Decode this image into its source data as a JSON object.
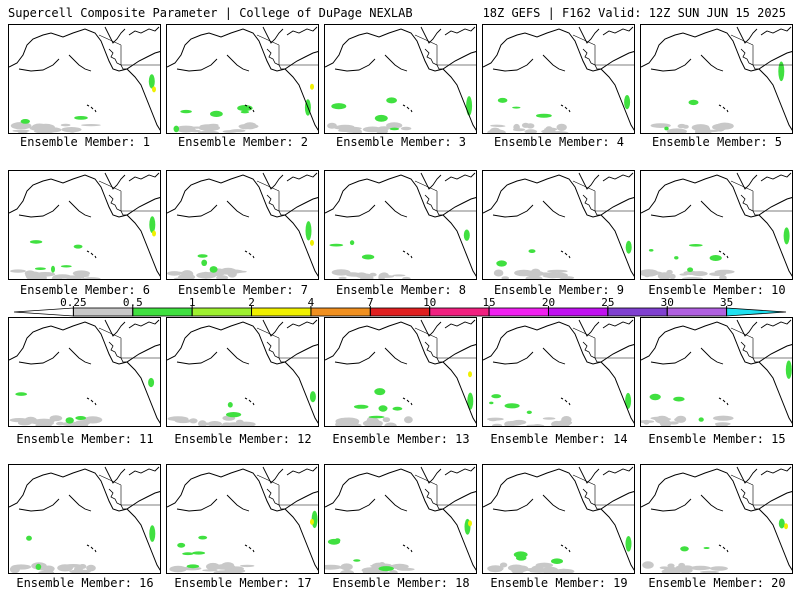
{
  "header": {
    "title_left": "Supercell Composite Parameter | College of DuPage NEXLAB",
    "title_right": "18Z GEFS | F162 Valid: 12Z SUN JUN 15 2025"
  },
  "map_region": "North Pacific / North America west coast",
  "panels": [
    {
      "label": "Ensemble Member: 1"
    },
    {
      "label": "Ensemble Member: 2"
    },
    {
      "label": "Ensemble Member: 3"
    },
    {
      "label": "Ensemble Member: 4"
    },
    {
      "label": "Ensemble Member: 5"
    },
    {
      "label": "Ensemble Member: 6"
    },
    {
      "label": "Ensemble Member: 7"
    },
    {
      "label": "Ensemble Member: 8"
    },
    {
      "label": "Ensemble Member: 9"
    },
    {
      "label": "Ensemble Member: 10"
    },
    {
      "label": "Ensemble Member: 11"
    },
    {
      "label": "Ensemble Member: 12"
    },
    {
      "label": "Ensemble Member: 13"
    },
    {
      "label": "Ensemble Member: 14"
    },
    {
      "label": "Ensemble Member: 15"
    },
    {
      "label": "Ensemble Member: 16"
    },
    {
      "label": "Ensemble Member: 17"
    },
    {
      "label": "Ensemble Member: 18"
    },
    {
      "label": "Ensemble Member: 19"
    },
    {
      "label": "Ensemble Member: 20"
    }
  ],
  "colorbar": {
    "labels": [
      "0.25",
      "0.5",
      "1",
      "2",
      "4",
      "7",
      "10",
      "15",
      "20",
      "25",
      "30",
      "35"
    ],
    "colors": [
      "#ffffff",
      "#c8c8c8",
      "#40e040",
      "#9ef030",
      "#f0f000",
      "#f09020",
      "#e02020",
      "#f02080",
      "#f020f0",
      "#c010f0",
      "#8040d0",
      "#b060e0",
      "#20e0f0"
    ]
  }
}
